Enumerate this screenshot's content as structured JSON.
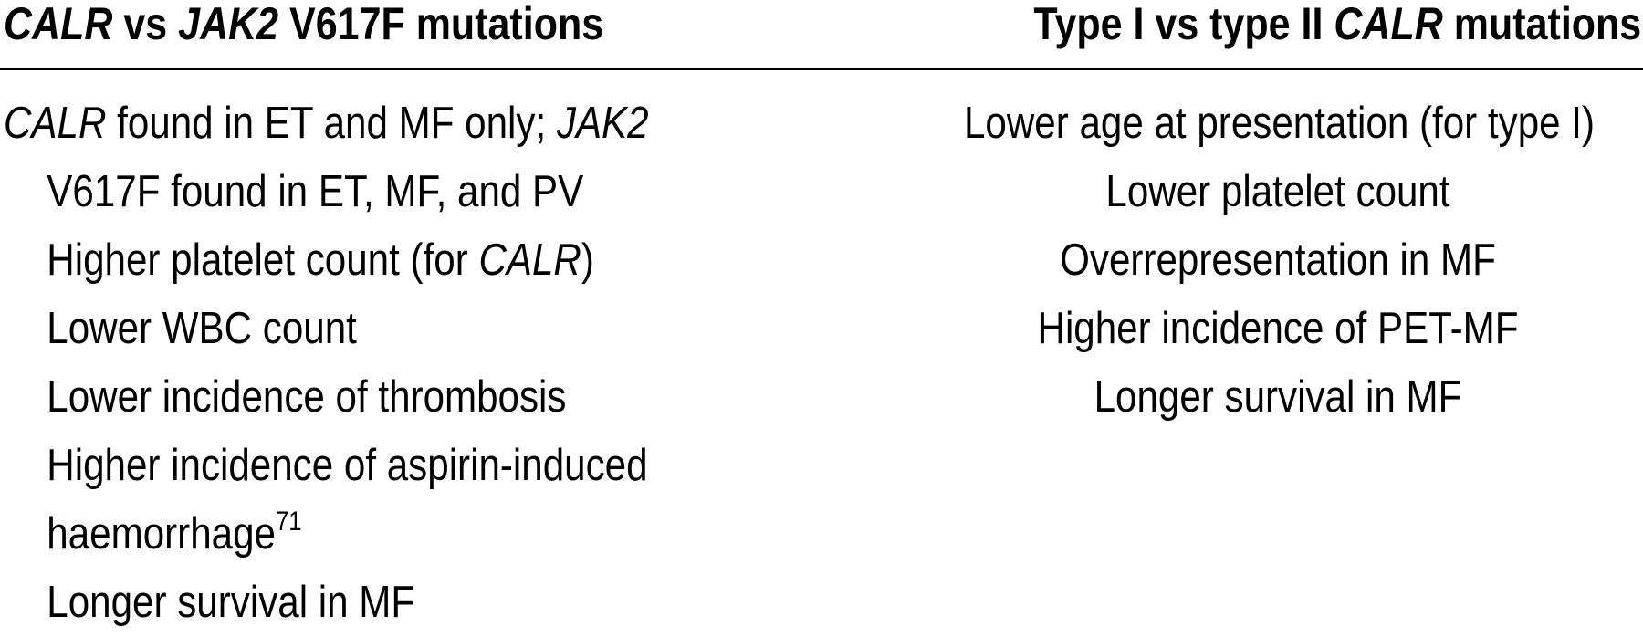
{
  "table": {
    "headers": {
      "left": {
        "gene_a": "CALR",
        "vs": " vs ",
        "gene_b": "JAK2",
        "rest": " V617F mutations"
      },
      "right": {
        "prefix": "Type I vs type II ",
        "gene": "CALR",
        "suffix": " mutations"
      }
    },
    "left_column": {
      "row1_gene_a": "CALR",
      "row1_text": " found in ET and MF only; ",
      "row1_gene_b": "JAK2",
      "row2": "V617F found in ET, MF, and PV",
      "row3_prefix": "Higher platelet count (for ",
      "row3_gene": "CALR",
      "row3_suffix": ")",
      "row4": "Lower WBC count",
      "row5": "Lower incidence of thrombosis",
      "row6": "Higher incidence of aspirin-induced",
      "row7": "haemorrhage",
      "row7_ref": "71",
      "row8": "Longer survival in MF"
    },
    "right_column": {
      "row1": "Lower age at presentation (for type I)",
      "row2": "Lower platelet count",
      "row3": "Overrepresentation in MF",
      "row4": "Higher incidence of PET-MF",
      "row5": "Longer survival in MF"
    }
  }
}
